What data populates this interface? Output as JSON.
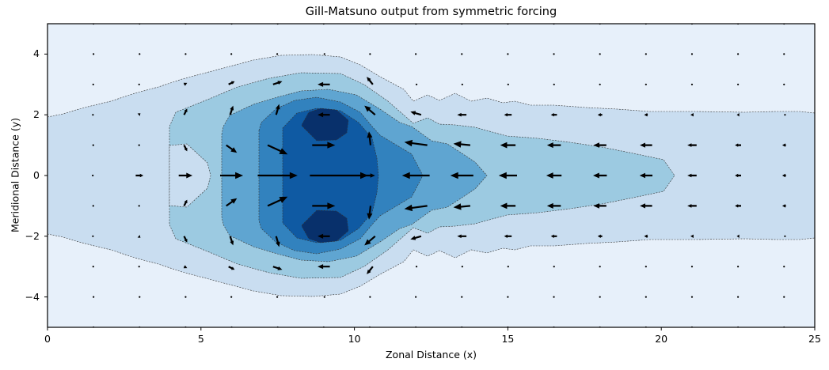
{
  "chart_data": {
    "type": "contourf+quiver",
    "title": "Gill-Matsuno output from symmetric forcing",
    "xlabel": "Zonal Distance (x)",
    "ylabel": "Meridional Distance (y)",
    "xlim": [
      0,
      25
    ],
    "ylim": [
      -5,
      5
    ],
    "xticks": [
      0,
      5,
      10,
      15,
      20,
      25
    ],
    "xtick_labels": [
      "0",
      "5",
      "10",
      "15",
      "20",
      "25"
    ],
    "yticks": [
      4,
      2,
      0,
      -2,
      -4
    ],
    "ytick_labels": [
      "4",
      "2",
      "0",
      "−2",
      "−4"
    ],
    "grid": false,
    "colormap": "Blues",
    "contour_levels": 7,
    "contour_colors": [
      "#e7f0fa",
      "#c9ddf0",
      "#9ccae1",
      "#5fa5d1",
      "#3282be",
      "#0f5aa3",
      "#08306b"
    ],
    "contour_line_style": "dashed",
    "symmetry": "symmetric about y=0",
    "quiver_grid": {
      "x_spacing": 1.5,
      "y_spacing": 1.0
    },
    "quiver_upper_half": [
      {
        "y": 0,
        "vectors": [
          [
            1.5,
            0.05,
            0
          ],
          [
            3,
            0.25,
            0
          ],
          [
            4.5,
            0.45,
            0
          ],
          [
            6,
            0.75,
            0
          ],
          [
            7.5,
            1.3,
            0
          ],
          [
            9.5,
            1.9,
            0
          ],
          [
            10.5,
            0.35,
            0
          ],
          [
            12,
            -0.9,
            0
          ],
          [
            13.5,
            -0.75,
            0
          ],
          [
            15,
            -0.6,
            0
          ],
          [
            16.5,
            -0.5,
            0
          ],
          [
            18,
            -0.45,
            0
          ],
          [
            19.5,
            -0.42,
            0
          ],
          [
            21,
            -0.3,
            0
          ],
          [
            22.5,
            -0.2,
            0
          ],
          [
            24,
            -0.12,
            0
          ]
        ]
      },
      {
        "y": 1,
        "vectors": [
          [
            1.5,
            0.02,
            0.02
          ],
          [
            3,
            0.03,
            -0.05
          ],
          [
            4.5,
            0.1,
            -0.2
          ],
          [
            6,
            0.35,
            -0.25
          ],
          [
            7.5,
            0.65,
            -0.3
          ],
          [
            9,
            0.75,
            0
          ],
          [
            10.5,
            -0.05,
            0.45
          ],
          [
            12,
            -0.75,
            0.1
          ],
          [
            13.5,
            -0.55,
            0.05
          ],
          [
            15,
            -0.5,
            0
          ],
          [
            16.5,
            -0.45,
            0
          ],
          [
            18,
            -0.42,
            0
          ],
          [
            19.5,
            -0.4,
            0
          ],
          [
            21,
            -0.3,
            0
          ],
          [
            22.5,
            -0.2,
            0
          ],
          [
            24,
            -0.12,
            0
          ]
        ]
      },
      {
        "y": 2,
        "vectors": [
          [
            1.5,
            0.04,
            0.03
          ],
          [
            3,
            0.06,
            0.05
          ],
          [
            4.5,
            0.1,
            0.2
          ],
          [
            6,
            0.1,
            0.3
          ],
          [
            7.5,
            0.1,
            0.35
          ],
          [
            9,
            -0.4,
            0
          ],
          [
            10.5,
            -0.35,
            0.3
          ],
          [
            12,
            -0.35,
            0.1
          ],
          [
            13.5,
            -0.3,
            0
          ],
          [
            15,
            -0.25,
            0
          ],
          [
            16.5,
            -0.2,
            0
          ],
          [
            18,
            -0.15,
            0
          ],
          [
            19.5,
            -0.12,
            0
          ],
          [
            21,
            -0.1,
            0
          ],
          [
            22.5,
            -0.08,
            0
          ],
          [
            24,
            -0.06,
            0
          ]
        ]
      },
      {
        "y": 3,
        "vectors": [
          [
            1.5,
            0.02,
            0
          ],
          [
            3,
            0.03,
            0
          ],
          [
            4.5,
            0.1,
            0.05
          ],
          [
            6,
            0.2,
            0.1
          ],
          [
            7.5,
            0.3,
            0.1
          ],
          [
            9,
            -0.4,
            0
          ],
          [
            10.5,
            -0.2,
            0.25
          ],
          [
            12,
            -0.05,
            0
          ],
          [
            13.5,
            -0.03,
            0
          ],
          [
            15,
            -0.02,
            0
          ],
          [
            16.5,
            -0.01,
            0
          ],
          [
            18,
            0,
            0
          ],
          [
            19.5,
            0,
            0
          ],
          [
            21,
            0,
            0
          ],
          [
            22.5,
            0,
            0
          ],
          [
            24,
            0,
            0
          ]
        ]
      },
      {
        "y": 4,
        "vectors": [
          [
            1.5,
            0,
            0
          ],
          [
            3,
            0,
            0
          ],
          [
            4.5,
            0,
            0
          ],
          [
            6,
            0.02,
            0
          ],
          [
            7.5,
            0.03,
            0
          ],
          [
            9,
            -0.05,
            0
          ],
          [
            10.5,
            -0.02,
            0
          ],
          [
            12,
            0,
            0
          ],
          [
            13.5,
            0,
            0
          ],
          [
            15,
            0,
            0
          ],
          [
            16.5,
            0,
            0
          ],
          [
            18,
            0,
            0
          ],
          [
            19.5,
            0,
            0
          ],
          [
            21,
            0,
            0
          ],
          [
            22.5,
            0,
            0
          ],
          [
            24,
            0,
            0
          ]
        ]
      },
      {
        "y": 5,
        "vectors": [
          [
            1.5,
            0,
            0
          ],
          [
            3,
            0,
            0
          ],
          [
            4.5,
            0,
            0
          ],
          [
            6,
            0,
            0
          ],
          [
            7.5,
            0,
            0
          ],
          [
            9,
            0,
            0
          ],
          [
            10.5,
            0,
            0
          ],
          [
            12,
            0,
            0
          ],
          [
            13.5,
            0,
            0
          ],
          [
            15,
            0,
            0
          ],
          [
            16.5,
            0,
            0
          ],
          [
            18,
            0,
            0
          ],
          [
            19.5,
            0,
            0
          ],
          [
            21,
            0,
            0
          ],
          [
            22.5,
            0,
            0
          ],
          [
            24,
            0,
            0
          ]
        ]
      }
    ]
  }
}
